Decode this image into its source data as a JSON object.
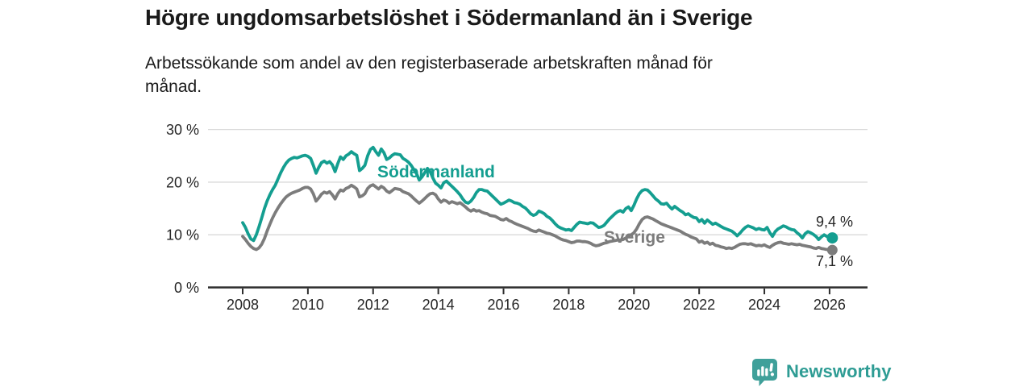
{
  "header": {
    "title": "Högre ungdomsarbetslöshet i Södermanland än i Sverige",
    "subtitle_line1": "Arbetssökande som andel av den registerbaserade arbetskraften månad för",
    "subtitle_line2": "månad."
  },
  "footer": {
    "brand": "Newsworthy"
  },
  "colors": {
    "sodermanland": "#149e90",
    "sverige": "#7c7c7c",
    "axis": "#2e2e2e",
    "grid": "#dadada",
    "text": "#262626",
    "brand_text": "#2e9c94",
    "logo_bubble": "#3fa09a"
  },
  "chart_data": {
    "type": "line",
    "title": "Högre ungdomsarbetslöshet i Södermanland än i Sverige",
    "subtitle": "Arbetssökande som andel av den registerbaserade arbetskraften månad för månad.",
    "x_unit": "month",
    "x_start": "2008-01",
    "x_end": "2026-02",
    "x_ticks": [
      "2008",
      "2010",
      "2012",
      "2014",
      "2016",
      "2018",
      "2020",
      "2022",
      "2024",
      "2026"
    ],
    "y_ticks": [
      {
        "value": 0,
        "label": "0 %"
      },
      {
        "value": 10,
        "label": "10 %"
      },
      {
        "value": 20,
        "label": "20 %"
      },
      {
        "value": 30,
        "label": "30 %"
      }
    ],
    "ylim": [
      0,
      32
    ],
    "grid": "horizontal-light",
    "legend": "inline-series-labels",
    "series": [
      {
        "name": "Södermanland",
        "slug": "sodermanland",
        "color": "#149e90",
        "end_label": "9,4 %",
        "end_value": 9.4,
        "values": [
          12.3,
          11.4,
          10.2,
          9.2,
          8.9,
          10.0,
          11.5,
          13.2,
          15.0,
          16.4,
          17.6,
          18.6,
          19.4,
          20.6,
          21.8,
          22.8,
          23.6,
          24.2,
          24.5,
          24.7,
          24.6,
          24.8,
          25.0,
          25.1,
          24.9,
          24.5,
          23.2,
          21.7,
          22.8,
          23.7,
          24.0,
          23.6,
          23.9,
          23.3,
          22.0,
          23.5,
          24.8,
          24.3,
          25.0,
          25.3,
          25.8,
          25.4,
          25.1,
          22.2,
          22.6,
          23.2,
          25.0,
          26.2,
          26.6,
          25.8,
          25.1,
          26.3,
          25.6,
          24.3,
          24.6,
          25.1,
          25.4,
          25.3,
          25.2,
          24.5,
          24.2,
          23.8,
          23.2,
          22.4,
          21.6,
          20.4,
          21.0,
          21.8,
          22.6,
          22.0,
          20.8,
          19.8,
          19.4,
          18.9,
          19.9,
          20.2,
          19.7,
          19.2,
          18.7,
          18.2,
          17.6,
          16.8,
          16.2,
          16.0,
          16.4,
          17.1,
          18.0,
          18.6,
          18.6,
          18.4,
          18.3,
          17.8,
          17.3,
          16.8,
          16.3,
          15.8,
          16.0,
          16.3,
          16.6,
          16.4,
          16.1,
          16.0,
          15.8,
          15.4,
          15.1,
          14.6,
          14.0,
          13.7,
          13.9,
          14.5,
          14.3,
          14.0,
          13.5,
          13.2,
          12.7,
          12.1,
          11.6,
          11.3,
          11.1,
          10.9,
          11.0,
          10.8,
          11.4,
          12.0,
          12.4,
          12.3,
          12.2,
          12.1,
          12.3,
          12.2,
          11.8,
          11.4,
          11.5,
          11.8,
          12.4,
          13.0,
          13.5,
          14.0,
          14.4,
          14.6,
          14.3,
          15.0,
          15.3,
          14.6,
          15.6,
          16.8,
          17.8,
          18.4,
          18.6,
          18.5,
          18.0,
          17.4,
          16.8,
          16.4,
          15.9,
          15.8,
          16.0,
          15.4,
          14.9,
          15.4,
          15.0,
          14.6,
          14.3,
          13.8,
          14.0,
          13.6,
          13.3,
          13.2,
          12.5,
          12.9,
          12.2,
          12.8,
          12.4,
          12.0,
          12.2,
          11.9,
          11.6,
          11.3,
          11.1,
          10.9,
          10.7,
          10.3,
          9.8,
          10.3,
          10.9,
          11.4,
          11.7,
          11.5,
          11.3,
          11.0,
          11.2,
          11.0,
          10.9,
          11.4,
          10.4,
          9.7,
          10.6,
          11.1,
          11.4,
          11.7,
          11.5,
          11.2,
          11.0,
          10.9,
          10.4,
          10.0,
          9.4,
          10.2,
          10.6,
          10.4,
          10.1,
          9.7,
          9.1,
          9.6,
          10.0,
          9.7,
          9.5,
          9.4
        ]
      },
      {
        "name": "Sverige",
        "slug": "sverige",
        "color": "#7c7c7c",
        "end_label": "7,1 %",
        "end_value": 7.1,
        "values": [
          9.7,
          9.1,
          8.4,
          7.8,
          7.4,
          7.2,
          7.5,
          8.2,
          9.3,
          10.7,
          12.0,
          13.2,
          14.2,
          15.1,
          15.9,
          16.6,
          17.2,
          17.6,
          17.9,
          18.1,
          18.3,
          18.5,
          18.8,
          19.0,
          19.0,
          18.7,
          17.8,
          16.4,
          17.0,
          17.7,
          18.1,
          17.9,
          18.2,
          17.6,
          16.8,
          17.8,
          18.5,
          18.3,
          18.8,
          19.0,
          19.4,
          19.1,
          18.7,
          17.2,
          17.4,
          17.8,
          18.8,
          19.3,
          19.5,
          19.1,
          18.7,
          19.2,
          18.9,
          18.3,
          18.0,
          18.4,
          18.8,
          18.7,
          18.6,
          18.2,
          18.0,
          17.8,
          17.4,
          16.9,
          16.4,
          16.0,
          16.4,
          16.9,
          17.4,
          17.8,
          17.9,
          17.6,
          16.8,
          16.2,
          16.6,
          16.4,
          16.0,
          16.3,
          16.1,
          15.9,
          16.1,
          15.7,
          15.3,
          14.8,
          14.5,
          14.8,
          14.5,
          14.6,
          14.3,
          14.1,
          14.0,
          13.7,
          13.6,
          13.5,
          13.2,
          12.9,
          12.8,
          13.1,
          12.7,
          12.5,
          12.2,
          12.0,
          11.8,
          11.6,
          11.4,
          11.2,
          10.9,
          10.7,
          10.6,
          10.9,
          10.7,
          10.5,
          10.3,
          10.2,
          10.0,
          9.8,
          9.5,
          9.2,
          9.0,
          8.9,
          8.7,
          8.5,
          8.6,
          8.8,
          8.8,
          8.7,
          8.7,
          8.6,
          8.4,
          8.1,
          7.9,
          8.0,
          8.2,
          8.4,
          8.5,
          8.7,
          8.8,
          8.9,
          9.0,
          9.0,
          9.1,
          9.4,
          9.7,
          10.0,
          10.4,
          11.1,
          12.1,
          12.9,
          13.3,
          13.4,
          13.2,
          13.0,
          12.7,
          12.4,
          12.1,
          11.9,
          11.7,
          11.5,
          11.3,
          11.1,
          10.9,
          10.7,
          10.4,
          10.1,
          9.9,
          9.6,
          9.4,
          9.2,
          8.6,
          8.8,
          8.4,
          8.6,
          8.2,
          8.4,
          8.0,
          7.9,
          7.7,
          7.6,
          7.4,
          7.5,
          7.4,
          7.6,
          7.9,
          8.2,
          8.3,
          8.3,
          8.2,
          8.3,
          8.1,
          7.9,
          8.0,
          7.9,
          8.1,
          7.8,
          7.6,
          8.0,
          8.3,
          8.5,
          8.6,
          8.4,
          8.3,
          8.2,
          8.3,
          8.2,
          8.1,
          8.2,
          8.0,
          7.9,
          7.8,
          7.7,
          7.5,
          7.4,
          7.6,
          7.4,
          7.3,
          7.2,
          7.2,
          7.1
        ]
      }
    ]
  }
}
